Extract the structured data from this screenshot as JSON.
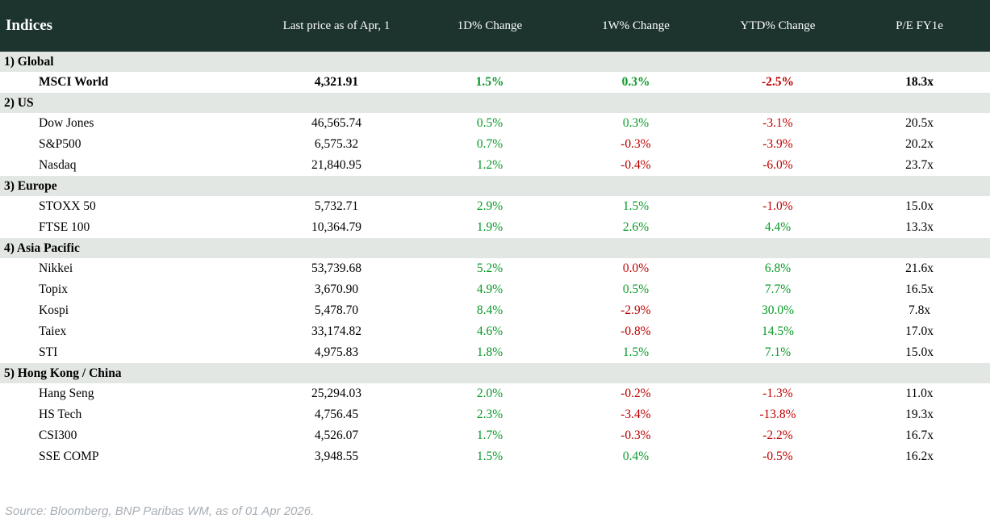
{
  "chart_data": {
    "type": "table",
    "title": "Indices",
    "columns": [
      "Last price as of Apr, 1",
      "1D% Change",
      "1W% Change",
      "YTD% Change",
      "P/E FY1e"
    ],
    "sections": [
      {
        "label": "1) Global",
        "rows": [
          {
            "name": "MSCI World",
            "bold": true,
            "cells": [
              {
                "v": "4,321.91"
              },
              {
                "v": "1.5%",
                "c": "up"
              },
              {
                "v": "0.3%",
                "c": "up"
              },
              {
                "v": "-2.5%",
                "c": "down"
              },
              {
                "v": "18.3x"
              }
            ]
          }
        ]
      },
      {
        "label": "2) US",
        "rows": [
          {
            "name": "Dow Jones",
            "bold": false,
            "cells": [
              {
                "v": "46,565.74"
              },
              {
                "v": "0.5%",
                "c": "up"
              },
              {
                "v": "0.3%",
                "c": "up"
              },
              {
                "v": "-3.1%",
                "c": "down"
              },
              {
                "v": "20.5x"
              }
            ]
          },
          {
            "name": "S&P500",
            "bold": false,
            "cells": [
              {
                "v": "6,575.32"
              },
              {
                "v": "0.7%",
                "c": "up"
              },
              {
                "v": "-0.3%",
                "c": "down"
              },
              {
                "v": "-3.9%",
                "c": "down"
              },
              {
                "v": "20.2x"
              }
            ]
          },
          {
            "name": "Nasdaq",
            "bold": false,
            "cells": [
              {
                "v": "21,840.95"
              },
              {
                "v": "1.2%",
                "c": "up"
              },
              {
                "v": "-0.4%",
                "c": "down"
              },
              {
                "v": "-6.0%",
                "c": "down"
              },
              {
                "v": "23.7x"
              }
            ]
          }
        ]
      },
      {
        "label": "3) Europe",
        "rows": [
          {
            "name": "STOXX 50",
            "bold": false,
            "cells": [
              {
                "v": "5,732.71"
              },
              {
                "v": "2.9%",
                "c": "up"
              },
              {
                "v": "1.5%",
                "c": "up"
              },
              {
                "v": "-1.0%",
                "c": "down"
              },
              {
                "v": "15.0x"
              }
            ]
          },
          {
            "name": "FTSE 100",
            "bold": false,
            "cells": [
              {
                "v": "10,364.79"
              },
              {
                "v": "1.9%",
                "c": "up"
              },
              {
                "v": "2.6%",
                "c": "up"
              },
              {
                "v": "4.4%",
                "c": "up"
              },
              {
                "v": "13.3x"
              }
            ]
          }
        ]
      },
      {
        "label": "4) Asia Pacific",
        "rows": [
          {
            "name": "Nikkei",
            "bold": false,
            "cells": [
              {
                "v": "53,739.68"
              },
              {
                "v": "5.2%",
                "c": "up"
              },
              {
                "v": "0.0%",
                "c": "down"
              },
              {
                "v": "6.8%",
                "c": "up"
              },
              {
                "v": "21.6x"
              }
            ]
          },
          {
            "name": "Topix",
            "bold": false,
            "cells": [
              {
                "v": "3,670.90"
              },
              {
                "v": "4.9%",
                "c": "up"
              },
              {
                "v": "0.5%",
                "c": "up"
              },
              {
                "v": "7.7%",
                "c": "up"
              },
              {
                "v": "16.5x"
              }
            ]
          },
          {
            "name": "Kospi",
            "bold": false,
            "cells": [
              {
                "v": "5,478.70"
              },
              {
                "v": "8.4%",
                "c": "up"
              },
              {
                "v": "-2.9%",
                "c": "down"
              },
              {
                "v": "30.0%",
                "c": "up"
              },
              {
                "v": "7.8x"
              }
            ]
          },
          {
            "name": "Taiex",
            "bold": false,
            "cells": [
              {
                "v": "33,174.82"
              },
              {
                "v": "4.6%",
                "c": "up"
              },
              {
                "v": "-0.8%",
                "c": "down"
              },
              {
                "v": "14.5%",
                "c": "up"
              },
              {
                "v": "17.0x"
              }
            ]
          },
          {
            "name": "STI",
            "bold": false,
            "cells": [
              {
                "v": "4,975.83"
              },
              {
                "v": "1.8%",
                "c": "up"
              },
              {
                "v": "1.5%",
                "c": "up"
              },
              {
                "v": "7.1%",
                "c": "up"
              },
              {
                "v": "15.0x"
              }
            ]
          }
        ]
      },
      {
        "label": "5) Hong Kong / China",
        "rows": [
          {
            "name": "Hang Seng",
            "bold": false,
            "cells": [
              {
                "v": "25,294.03"
              },
              {
                "v": "2.0%",
                "c": "up"
              },
              {
                "v": "-0.2%",
                "c": "down"
              },
              {
                "v": "-1.3%",
                "c": "down"
              },
              {
                "v": "11.0x"
              }
            ]
          },
          {
            "name": "HS Tech",
            "bold": false,
            "cells": [
              {
                "v": "4,756.45"
              },
              {
                "v": "2.3%",
                "c": "up"
              },
              {
                "v": "-3.4%",
                "c": "down"
              },
              {
                "v": "-13.8%",
                "c": "down"
              },
              {
                "v": "19.3x"
              }
            ]
          },
          {
            "name": "CSI300",
            "bold": false,
            "cells": [
              {
                "v": "4,526.07"
              },
              {
                "v": "1.7%",
                "c": "up"
              },
              {
                "v": "-0.3%",
                "c": "down"
              },
              {
                "v": "-2.2%",
                "c": "down"
              },
              {
                "v": "16.7x"
              }
            ]
          },
          {
            "name": "SSE COMP",
            "bold": false,
            "cells": [
              {
                "v": "3,948.55"
              },
              {
                "v": "1.5%",
                "c": "up"
              },
              {
                "v": "0.4%",
                "c": "up"
              },
              {
                "v": "-0.5%",
                "c": "down"
              },
              {
                "v": "16.2x"
              }
            ]
          }
        ]
      }
    ]
  },
  "source_note": "Source: Bloomberg, BNP Paribas WM, as of 01 Apr 2026.",
  "colors": {
    "header_bg": "#1c332e",
    "section_bg": "#e2e7e3",
    "positive": "#089927",
    "negative": "#c00000",
    "source_text": "#a7aeb4"
  }
}
